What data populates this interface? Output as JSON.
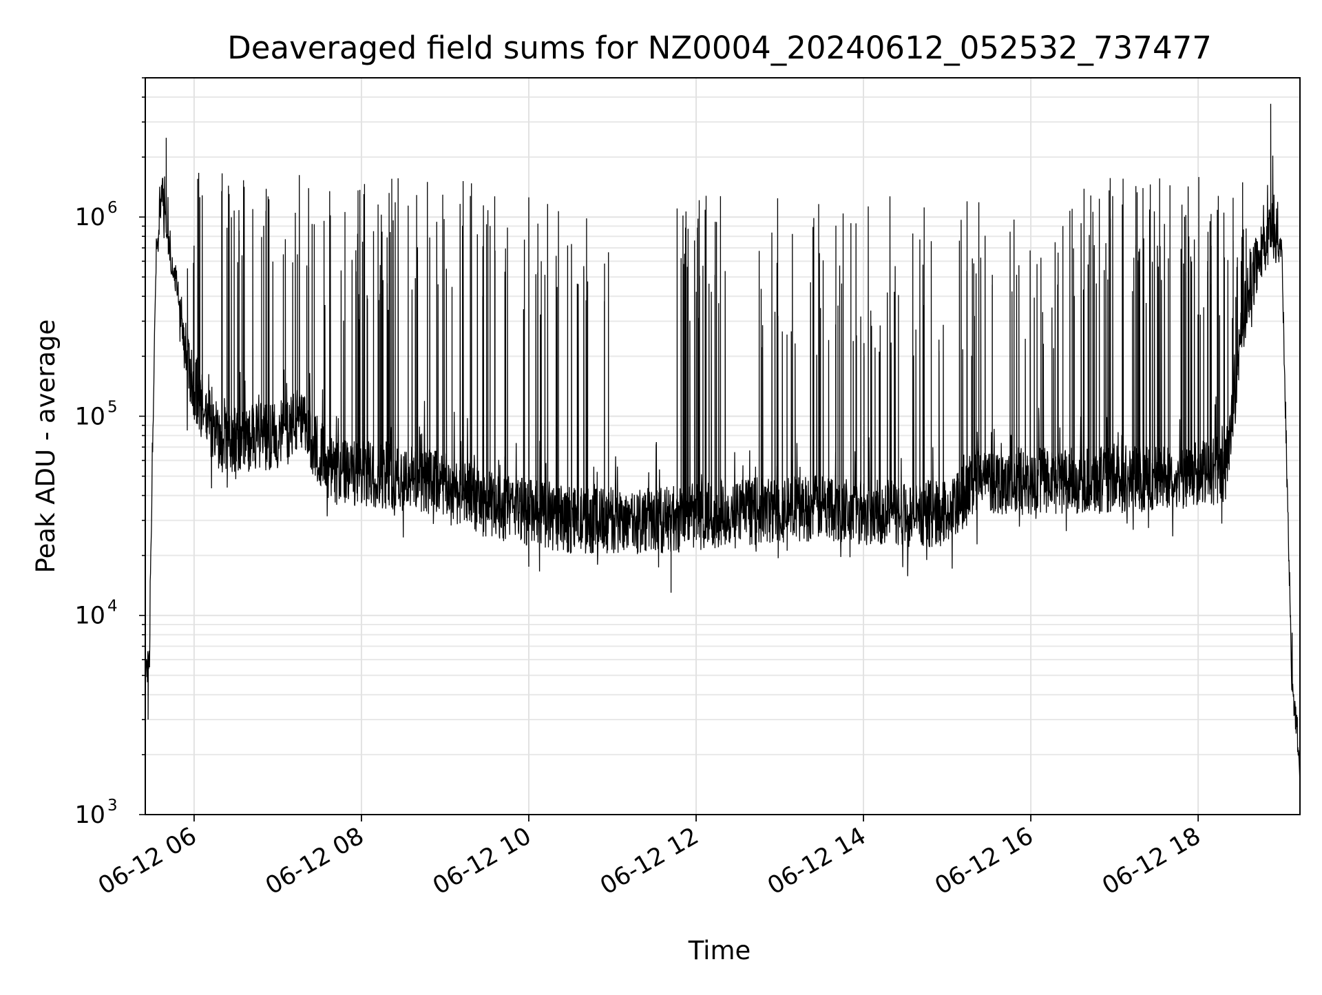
{
  "chart_data": {
    "type": "line",
    "title": "Deaveraged field sums for NZ0004_20240612_052532_737477",
    "xlabel": "Time",
    "ylabel": "Peak ADU - average",
    "y_scale": "log",
    "ylim": [
      1000,
      5000000
    ],
    "xlim": [
      "2024-06-12 05:25",
      "2024-06-12 19:13"
    ],
    "grid": true,
    "x_ticks": [
      {
        "value": "2024-06-12 06:00",
        "label": "06-12 06"
      },
      {
        "value": "2024-06-12 08:00",
        "label": "06-12 08"
      },
      {
        "value": "2024-06-12 10:00",
        "label": "06-12 10"
      },
      {
        "value": "2024-06-12 12:00",
        "label": "06-12 12"
      },
      {
        "value": "2024-06-12 14:00",
        "label": "06-12 14"
      },
      {
        "value": "2024-06-12 16:00",
        "label": "06-12 16"
      },
      {
        "value": "2024-06-12 18:00",
        "label": "06-12 18"
      }
    ],
    "y_ticks": [
      {
        "value": 1000,
        "base": "10",
        "exp": "3"
      },
      {
        "value": 10000,
        "base": "10",
        "exp": "4"
      },
      {
        "value": 100000,
        "base": "10",
        "exp": "5"
      },
      {
        "value": 1000000,
        "base": "10",
        "exp": "6"
      }
    ],
    "series": [
      {
        "color": "#000000",
        "baseline_points": [
          {
            "x": "2024-06-12 05:25",
            "y": 5000
          },
          {
            "x": "2024-06-12 05:28",
            "y": 6000
          },
          {
            "x": "2024-06-12 05:30",
            "y": 60000
          },
          {
            "x": "2024-06-12 05:33",
            "y": 700000
          },
          {
            "x": "2024-06-12 05:37",
            "y": 1400000
          },
          {
            "x": "2024-06-12 05:42",
            "y": 700000
          },
          {
            "x": "2024-06-12 05:48",
            "y": 450000
          },
          {
            "x": "2024-06-12 05:55",
            "y": 180000
          },
          {
            "x": "2024-06-12 06:05",
            "y": 110000
          },
          {
            "x": "2024-06-12 06:20",
            "y": 75000
          },
          {
            "x": "2024-06-12 07:00",
            "y": 80000
          },
          {
            "x": "2024-06-12 07:15",
            "y": 95000
          },
          {
            "x": "2024-06-12 07:25",
            "y": 75000
          },
          {
            "x": "2024-06-12 07:40",
            "y": 52000
          },
          {
            "x": "2024-06-12 08:30",
            "y": 50000
          },
          {
            "x": "2024-06-12 09:00",
            "y": 45000
          },
          {
            "x": "2024-06-12 09:30",
            "y": 36000
          },
          {
            "x": "2024-06-12 10:00",
            "y": 33000
          },
          {
            "x": "2024-06-12 10:30",
            "y": 30000
          },
          {
            "x": "2024-06-12 11:30",
            "y": 30000
          },
          {
            "x": "2024-06-12 12:30",
            "y": 33000
          },
          {
            "x": "2024-06-12 13:30",
            "y": 35000
          },
          {
            "x": "2024-06-12 14:30",
            "y": 32000
          },
          {
            "x": "2024-06-12 15:05",
            "y": 33000
          },
          {
            "x": "2024-06-12 15:20",
            "y": 48000
          },
          {
            "x": "2024-06-12 16:00",
            "y": 47000
          },
          {
            "x": "2024-06-12 17:00",
            "y": 48000
          },
          {
            "x": "2024-06-12 18:00",
            "y": 50000
          },
          {
            "x": "2024-06-12 18:20",
            "y": 55000
          },
          {
            "x": "2024-06-12 18:35",
            "y": 400000
          },
          {
            "x": "2024-06-12 18:45",
            "y": 650000
          },
          {
            "x": "2024-06-12 18:55",
            "y": 900000
          },
          {
            "x": "2024-06-12 19:00",
            "y": 700000
          },
          {
            "x": "2024-06-12 19:04",
            "y": 40000
          },
          {
            "x": "2024-06-12 19:07",
            "y": 5000
          },
          {
            "x": "2024-06-12 19:10",
            "y": 3000
          },
          {
            "x": "2024-06-12 19:13",
            "y": 1700
          }
        ],
        "spike_peak_approx": 1400000,
        "spike_regions": [
          {
            "start": "2024-06-12 05:55",
            "end": "2024-06-12 07:30",
            "count": 40,
            "min": 500000,
            "max": 1700000
          },
          {
            "start": "2024-06-12 07:30",
            "end": "2024-06-12 09:45",
            "count": 70,
            "min": 300000,
            "max": 1600000
          },
          {
            "start": "2024-06-12 09:55",
            "end": "2024-06-12 11:00",
            "count": 25,
            "min": 300000,
            "max": 1300000
          },
          {
            "start": "2024-06-12 11:45",
            "end": "2024-06-12 12:25",
            "count": 30,
            "min": 300000,
            "max": 1300000
          },
          {
            "start": "2024-06-12 12:45",
            "end": "2024-06-12 15:00",
            "count": 60,
            "min": 200000,
            "max": 1300000
          },
          {
            "start": "2024-06-12 15:00",
            "end": "2024-06-12 16:30",
            "count": 35,
            "min": 200000,
            "max": 1300000
          },
          {
            "start": "2024-06-12 16:30",
            "end": "2024-06-12 18:35",
            "count": 90,
            "min": 300000,
            "max": 1600000
          }
        ],
        "notable_points": [
          {
            "x": "2024-06-12 05:40",
            "y": 2500000
          },
          {
            "x": "2024-06-12 05:27",
            "y": 3000
          },
          {
            "x": "2024-06-12 11:42",
            "y": 13000
          },
          {
            "x": "2024-06-12 18:52",
            "y": 3700000
          }
        ]
      }
    ]
  }
}
